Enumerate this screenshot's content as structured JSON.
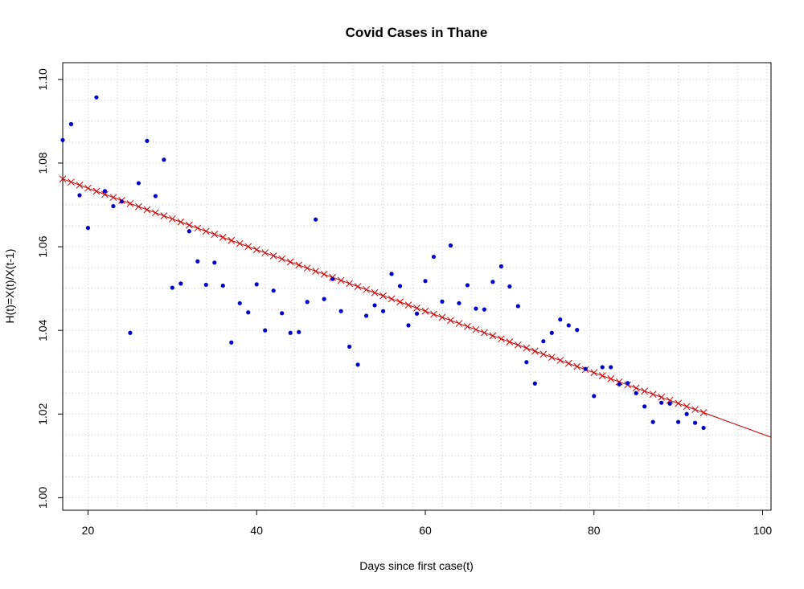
{
  "chart_data": {
    "type": "scatter",
    "title": "Covid Cases in Thane",
    "xlabel": "Days since first case(t)",
    "ylabel": "H(t)=X(t)/X(t-1)",
    "xlim": [
      17,
      101
    ],
    "ylim": [
      0.997,
      1.104
    ],
    "xticks": [
      20,
      40,
      60,
      80,
      100
    ],
    "yticks": [
      1.0,
      1.02,
      1.04,
      1.06,
      1.08,
      1.1
    ],
    "ytick_labels": [
      "1.00",
      "1.02",
      "1.04",
      "1.06",
      "1.08",
      "1.10"
    ],
    "grid": true,
    "minor_y_step": 0.005,
    "minor_x_step": 3.5,
    "colors": {
      "observed": "#0000cc",
      "fit": "#cc0000",
      "grid": "#cccccc"
    },
    "series": [
      {
        "marker": "dot",
        "x": [
          17,
          18,
          19,
          20,
          21,
          22,
          23,
          24,
          25,
          26,
          27,
          28,
          29,
          30,
          31,
          32,
          33,
          34,
          35,
          36,
          37,
          38,
          39,
          40,
          41,
          42,
          43,
          44,
          45,
          46,
          47,
          48,
          49,
          50,
          51,
          52,
          53,
          54,
          55,
          56,
          57,
          58,
          59,
          60,
          61,
          62,
          63,
          64,
          65,
          66,
          67,
          68,
          69,
          70,
          71,
          72,
          73,
          74,
          75,
          76,
          77,
          78,
          79,
          80,
          81,
          82,
          83,
          84,
          85,
          86,
          87,
          88,
          89,
          90,
          91,
          92,
          93
        ],
        "y": [
          1.0855,
          1.0893,
          1.0723,
          1.0645,
          1.0957,
          1.0733,
          1.0697,
          1.0708,
          1.0394,
          1.0752,
          1.0853,
          1.0721,
          1.0808,
          1.0502,
          1.0512,
          1.0637,
          1.0565,
          1.0509,
          1.0562,
          1.0507,
          1.0371,
          1.0465,
          1.0443,
          1.051,
          1.04,
          1.0495,
          1.0441,
          1.0394,
          1.0396,
          1.0468,
          1.0665,
          1.0475,
          1.0523,
          1.0446,
          1.0361,
          1.0318,
          1.0435,
          1.046,
          1.0446,
          1.0535,
          1.0506,
          1.0412,
          1.044,
          1.0518,
          1.0576,
          1.0469,
          1.0603,
          1.0465,
          1.0508,
          1.0452,
          1.045,
          1.0516,
          1.0553,
          1.0505,
          1.0458,
          1.0324,
          1.0273,
          1.0374,
          1.0394,
          1.0426,
          1.0412,
          1.0401,
          1.0308,
          1.0243,
          1.0312,
          1.0312,
          1.0271,
          1.0274,
          1.025,
          1.0218,
          1.0181,
          1.0227,
          1.0225,
          1.0181,
          1.02,
          1.0179,
          1.0167
        ]
      },
      {
        "marker": "cross",
        "x_start": 17,
        "x_end": 93,
        "y_at_start": 1.0762,
        "slope": -0.000735,
        "line_extends_to": 101
      }
    ]
  }
}
